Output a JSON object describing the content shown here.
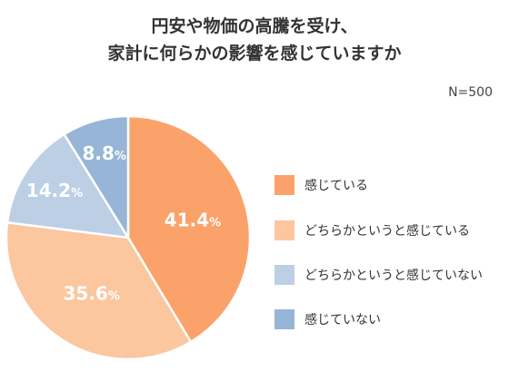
{
  "chart_data": {
    "type": "pie",
    "title": [
      "円安や物価の高騰を受け、",
      "家計に何らかの影響を感じていますか"
    ],
    "sample_size": "N=500",
    "unit": "%",
    "categories": [
      "感じている",
      "どちらかというと感じている",
      "どちらかというと感じていない",
      "感じていない"
    ],
    "values": [
      41.4,
      35.6,
      14.2,
      8.8
    ],
    "value_labels": [
      "41.4",
      "35.6",
      "14.2",
      "8.8"
    ],
    "colors": [
      "#fba26a",
      "#fcc69f",
      "#bccfe5",
      "#97b5d6"
    ],
    "start": "12 o'clock, clockwise",
    "legend_position": "right"
  }
}
